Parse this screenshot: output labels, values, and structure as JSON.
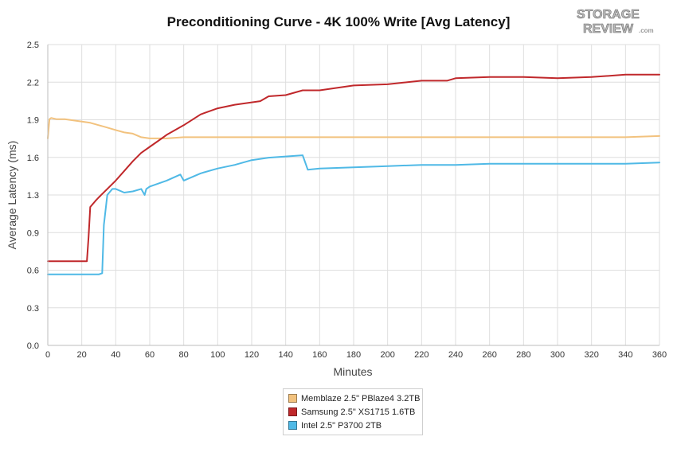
{
  "logo": {
    "line1": "STORAGE",
    "line2": "REVIEW",
    "suffix": ".com"
  },
  "chart_data": {
    "type": "line",
    "title": "Preconditioning Curve - 4K 100% Write [Avg Latency]",
    "xlabel": "Minutes",
    "ylabel": "Average Latency (ms)",
    "xlim": [
      0,
      360
    ],
    "ylim": [
      0,
      2.5
    ],
    "x_ticks": [
      0,
      20,
      40,
      60,
      80,
      100,
      120,
      140,
      160,
      180,
      200,
      220,
      240,
      260,
      280,
      300,
      320,
      340,
      360
    ],
    "y_ticks": [
      "0.0",
      "0.3",
      "0.6",
      "0.9",
      "1.3",
      "1.6",
      "1.9",
      "2.2",
      "2.5"
    ],
    "y_tick_values": [
      0,
      0.3125,
      0.625,
      0.9375,
      1.25,
      1.5625,
      1.875,
      2.1875,
      2.5
    ],
    "grid": true,
    "legend_position": "bottom-center",
    "series": [
      {
        "name": "Memblaze 2.5\" PBlaze4 3.2TB",
        "color": "#f2c27e",
        "x": [
          0,
          1,
          2,
          5,
          10,
          15,
          20,
          25,
          30,
          35,
          40,
          45,
          50,
          55,
          60,
          70,
          80,
          90,
          100,
          120,
          140,
          160,
          180,
          200,
          220,
          240,
          260,
          280,
          300,
          320,
          340,
          360
        ],
        "y": [
          1.72,
          1.88,
          1.89,
          1.88,
          1.88,
          1.87,
          1.86,
          1.85,
          1.83,
          1.81,
          1.79,
          1.77,
          1.76,
          1.73,
          1.72,
          1.72,
          1.73,
          1.73,
          1.73,
          1.73,
          1.73,
          1.73,
          1.73,
          1.73,
          1.73,
          1.73,
          1.73,
          1.73,
          1.73,
          1.73,
          1.73,
          1.74
        ]
      },
      {
        "name": "Samsung 2.5\" XS1715 1.6TB",
        "color": "#c0282b",
        "x": [
          0,
          10,
          20,
          23,
          24,
          25,
          28,
          30,
          35,
          40,
          45,
          50,
          55,
          60,
          65,
          70,
          80,
          90,
          100,
          110,
          120,
          125,
          130,
          140,
          150,
          160,
          180,
          200,
          220,
          235,
          240,
          260,
          280,
          300,
          320,
          340,
          360
        ],
        "y": [
          0.7,
          0.7,
          0.7,
          0.7,
          0.9,
          1.15,
          1.2,
          1.23,
          1.3,
          1.37,
          1.45,
          1.53,
          1.6,
          1.65,
          1.7,
          1.75,
          1.83,
          1.92,
          1.97,
          2.0,
          2.02,
          2.03,
          2.07,
          2.08,
          2.12,
          2.12,
          2.16,
          2.17,
          2.2,
          2.2,
          2.22,
          2.23,
          2.23,
          2.22,
          2.23,
          2.25,
          2.25
        ]
      },
      {
        "name": "Intel 2.5\" P3700 2TB",
        "color": "#4fb9e6",
        "x": [
          0,
          10,
          20,
          30,
          32,
          33,
          35,
          38,
          40,
          45,
          50,
          55,
          57,
          58,
          60,
          70,
          78,
          80,
          90,
          100,
          110,
          120,
          130,
          140,
          150,
          152,
          153,
          160,
          180,
          200,
          220,
          240,
          260,
          280,
          300,
          320,
          340,
          360
        ],
        "y": [
          0.59,
          0.59,
          0.59,
          0.59,
          0.6,
          1.0,
          1.25,
          1.3,
          1.3,
          1.27,
          1.28,
          1.3,
          1.25,
          1.3,
          1.32,
          1.37,
          1.42,
          1.37,
          1.43,
          1.47,
          1.5,
          1.54,
          1.56,
          1.57,
          1.58,
          1.5,
          1.46,
          1.47,
          1.48,
          1.49,
          1.5,
          1.5,
          1.51,
          1.51,
          1.51,
          1.51,
          1.51,
          1.52
        ]
      }
    ]
  }
}
